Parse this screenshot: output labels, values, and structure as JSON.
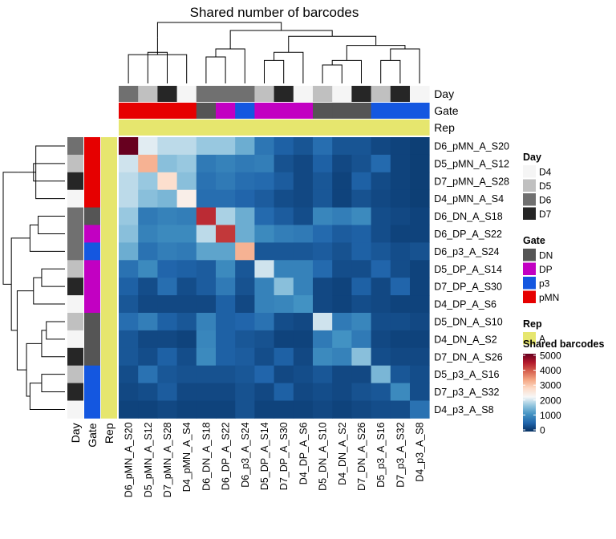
{
  "chart_data": {
    "type": "heatmap",
    "title": "Shared number of barcodes",
    "samples": [
      "D6_pMN_A_S20",
      "D5_pMN_A_S12",
      "D7_pMN_A_S28",
      "D4_pMN_A_S4",
      "D6_DN_A_S18",
      "D6_DP_A_S22",
      "D6_p3_A_S24",
      "D5_DP_A_S14",
      "D7_DP_A_S30",
      "D4_DP_A_S6",
      "D5_DN_A_S10",
      "D4_DN_A_S2",
      "D7_DN_A_S26",
      "D5_p3_A_S16",
      "D7_p3_A_S32",
      "D4_p3_A_S8"
    ],
    "rows": [
      "D6_pMN_A_S20",
      "D5_pMN_A_S12",
      "D7_pMN_A_S28",
      "D4_pMN_A_S4",
      "D6_DN_A_S18",
      "D6_DP_A_S22",
      "D6_p3_A_S24",
      "D5_DP_A_S14",
      "D7_DP_A_S30",
      "D4_DP_A_S6",
      "D5_DN_A_S10",
      "D4_DN_A_S2",
      "D7_DN_A_S26",
      "D5_p3_A_S16",
      "D7_p3_A_S32",
      "D4_p3_A_S8"
    ],
    "values": [
      [
        5000,
        2100,
        1900,
        1900,
        1700,
        1700,
        1400,
        750,
        500,
        380,
        650,
        380,
        380,
        250,
        200,
        150
      ],
      [
        2000,
        3200,
        1600,
        1700,
        800,
        900,
        800,
        850,
        350,
        250,
        500,
        250,
        350,
        600,
        200,
        150
      ],
      [
        1900,
        1700,
        2700,
        1600,
        700,
        800,
        650,
        600,
        450,
        250,
        400,
        200,
        500,
        280,
        200,
        150
      ],
      [
        1900,
        1600,
        1500,
        2400,
        650,
        650,
        550,
        450,
        300,
        250,
        400,
        200,
        350,
        250,
        200,
        150
      ],
      [
        1700,
        800,
        900,
        850,
        4300,
        1800,
        1400,
        600,
        450,
        300,
        950,
        850,
        1000,
        300,
        250,
        200
      ],
      [
        1600,
        900,
        1000,
        1000,
        1900,
        4200,
        1400,
        1000,
        850,
        800,
        600,
        450,
        500,
        300,
        200,
        200
      ],
      [
        1400,
        700,
        850,
        800,
        1300,
        1300,
        3200,
        400,
        400,
        400,
        450,
        350,
        500,
        400,
        300,
        350
      ],
      [
        700,
        1000,
        550,
        500,
        450,
        1000,
        400,
        2000,
        900,
        900,
        600,
        300,
        300,
        550,
        300,
        200
      ],
      [
        500,
        300,
        650,
        300,
        450,
        800,
        350,
        900,
        1600,
        900,
        250,
        200,
        500,
        250,
        550,
        200
      ],
      [
        400,
        250,
        250,
        250,
        250,
        500,
        250,
        900,
        950,
        1100,
        250,
        200,
        300,
        250,
        200,
        200
      ],
      [
        650,
        850,
        500,
        400,
        900,
        500,
        550,
        700,
        300,
        250,
        2000,
        800,
        950,
        300,
        300,
        250
      ],
      [
        400,
        250,
        250,
        200,
        950,
        500,
        400,
        350,
        200,
        200,
        800,
        1100,
        800,
        250,
        200,
        200
      ],
      [
        400,
        300,
        500,
        300,
        1000,
        500,
        450,
        300,
        500,
        250,
        1000,
        900,
        1600,
        300,
        250,
        250
      ],
      [
        300,
        700,
        400,
        350,
        350,
        350,
        400,
        550,
        250,
        300,
        400,
        250,
        250,
        1500,
        400,
        300
      ],
      [
        250,
        300,
        450,
        250,
        250,
        250,
        350,
        250,
        500,
        250,
        300,
        250,
        350,
        400,
        1000,
        300
      ],
      [
        200,
        200,
        250,
        200,
        200,
        200,
        350,
        200,
        200,
        200,
        250,
        200,
        250,
        300,
        300,
        700
      ]
    ],
    "annotations": {
      "Day": [
        "D6",
        "D5",
        "D7",
        "D4",
        "D6",
        "D6",
        "D6",
        "D5",
        "D7",
        "D4",
        "D5",
        "D4",
        "D7",
        "D5",
        "D7",
        "D4"
      ],
      "Gate": [
        "pMN",
        "pMN",
        "pMN",
        "pMN",
        "DN",
        "DP",
        "p3",
        "DP",
        "DP",
        "DP",
        "DN",
        "DN",
        "DN",
        "p3",
        "p3",
        "p3"
      ],
      "Rep": [
        "A",
        "A",
        "A",
        "A",
        "A",
        "A",
        "A",
        "A",
        "A",
        "A",
        "A",
        "A",
        "A",
        "A",
        "A",
        "A"
      ]
    },
    "annotation_names": [
      "Day",
      "Gate",
      "Rep"
    ],
    "legends": {
      "Day": {
        "title": "Day",
        "levels": [
          "D4",
          "D5",
          "D6",
          "D7"
        ],
        "colors": [
          "#F5F5F5",
          "#C0C0C0",
          "#707070",
          "#262626"
        ]
      },
      "Gate": {
        "title": "Gate",
        "levels": [
          "DN",
          "DP",
          "p3",
          "pMN"
        ],
        "colors": [
          "#555555",
          "#C200C2",
          "#1457E0",
          "#E60000"
        ]
      },
      "Rep": {
        "title": "Rep",
        "levels": [
          "A"
        ],
        "colors": [
          "#E6E66E"
        ]
      }
    },
    "colorbar": {
      "title": "Shared barcodes",
      "min": 0,
      "max": 5000,
      "ticks": [
        0,
        1000,
        2000,
        3000,
        4000,
        5000
      ]
    },
    "colorscale": [
      "#053061",
      "#2166AC",
      "#4393C3",
      "#92C5DE",
      "#F7F7F7",
      "#FDDBC7",
      "#F4A582",
      "#D6604D",
      "#B2182B",
      "#67001F"
    ]
  }
}
